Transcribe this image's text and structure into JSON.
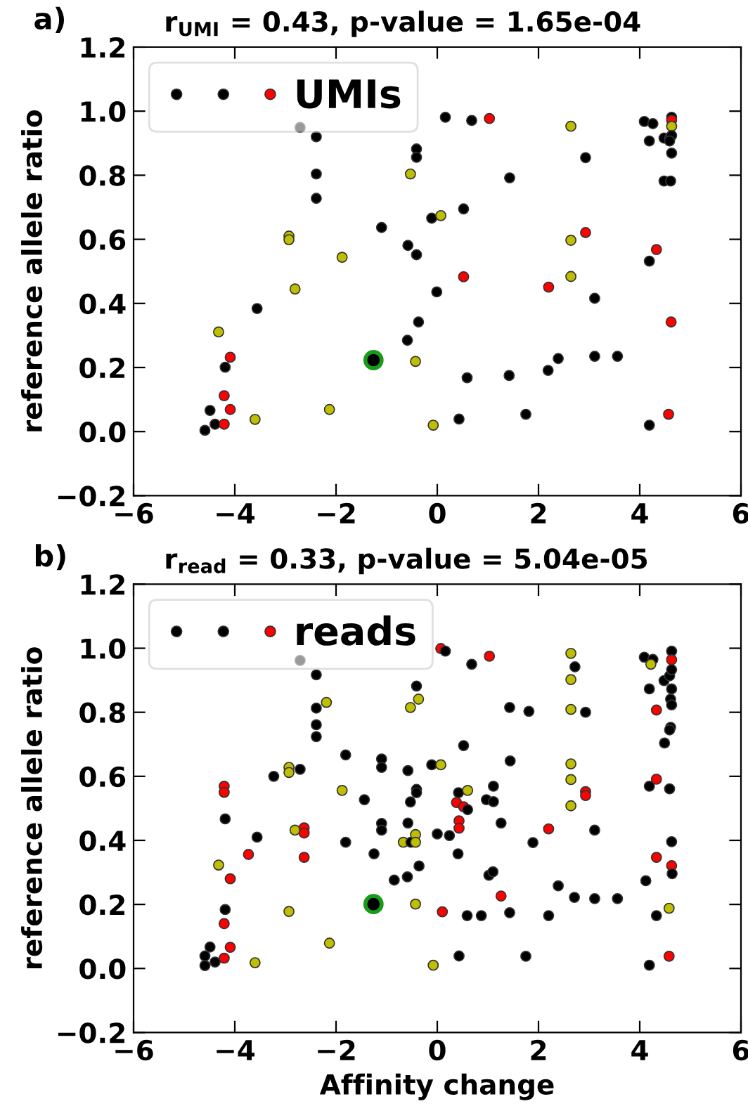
{
  "chart_data": [
    {
      "type": "scatter",
      "title": "r$_{UMI}$ = 0.43, p-value = 1.65e-04",
      "ylabel": "reference allele ratio",
      "annotations": [
        "a)"
      ],
      "xlim": [
        -6,
        6
      ],
      "xticks": [
        {
          "value": -6,
          "label": "−6"
        },
        {
          "value": -4,
          "label": "−4"
        },
        {
          "value": -2,
          "label": "−2"
        },
        0,
        2,
        4,
        6
      ],
      "ylim": [
        -0.2,
        1.2
      ],
      "yticks": [
        {
          "value": -0.2,
          "label": "−0.2"
        },
        {
          "value": 0,
          "label": "0.0"
        },
        {
          "value": 0.2,
          "label": "0.2"
        },
        {
          "value": 0.4,
          "label": "0.4"
        },
        {
          "value": 0.6,
          "label": "0.6"
        },
        {
          "value": 0.8,
          "label": "0.8"
        },
        {
          "value": 1.0,
          "label": "1.0"
        },
        {
          "value": 1.2,
          "label": "1.2"
        }
      ],
      "grid": false,
      "legend": "top left",
      "marker": "circle",
      "series": [
        {
          "name": "UMIs",
          "x": [
            -2.71,
            -2.39,
            1.03,
            -2.39,
            -2.39,
            -2.93,
            -2.93,
            -2.81,
            -1.88,
            -1.1,
            -0.58,
            -0.41,
            -0.53,
            -0.41,
            -0.41,
            -0.11,
            0.07,
            0.16,
            0.68,
            0.52,
            0.52,
            -0.01,
            1.43,
            2.64,
            2.93,
            2.64,
            2.93,
            2.64,
            2.2,
            3.11,
            4.09,
            4.26,
            4.19,
            4.48,
            4.59,
            4.63,
            4.63,
            4.63,
            4.63,
            4.59,
            4.63,
            4.48,
            4.61,
            4.33,
            4.19,
            -3.56,
            -4.32,
            -4.09,
            -4.19,
            -4.21,
            -4.49,
            -4.09,
            -4.39,
            -4.21,
            -4.59,
            -3.6,
            -2.13,
            -0.43,
            -0.59,
            -0.37,
            0.59,
            1.42,
            2.19,
            2.39,
            3.11,
            3.56,
            4.62,
            0.43,
            -0.08,
            1.75,
            4.19,
            4.57
          ],
          "values": [
            0.949,
            0.92,
            0.977,
            0.804,
            0.728,
            0.61,
            0.599,
            0.445,
            0.544,
            0.637,
            0.581,
            0.552,
            0.804,
            0.882,
            0.856,
            0.666,
            0.674,
            0.981,
            0.971,
            0.695,
            0.483,
            0.436,
            0.792,
            0.953,
            0.855,
            0.597,
            0.621,
            0.484,
            0.451,
            0.416,
            0.968,
            0.961,
            0.907,
            0.916,
            0.916,
            0.981,
            0.972,
            0.953,
            0.924,
            0.907,
            0.869,
            0.782,
            0.782,
            0.568,
            0.532,
            0.384,
            0.311,
            0.232,
            0.201,
            0.112,
            0.066,
            0.069,
            0.023,
            0.023,
            0.004,
            0.038,
            0.069,
            0.219,
            0.285,
            0.342,
            0.168,
            0.175,
            0.191,
            0.228,
            0.235,
            0.235,
            0.342,
            0.039,
            0.02,
            0.054,
            0.02,
            0.054
          ],
          "colors": [
            "#000000",
            "#000000",
            "#ff0000",
            "#000000",
            "#000000",
            "#bfbf00",
            "#bfbf00",
            "#bfbf00",
            "#bfbf00",
            "#000000",
            "#000000",
            "#000000",
            "#bfbf00",
            "#000000",
            "#000000",
            "#000000",
            "#bfbf00",
            "#000000",
            "#000000",
            "#000000",
            "#ff0000",
            "#000000",
            "#000000",
            "#bfbf00",
            "#000000",
            "#bfbf00",
            "#ff0000",
            "#bfbf00",
            "#ff0000",
            "#000000",
            "#000000",
            "#000000",
            "#000000",
            "#000000",
            "#000000",
            "#000000",
            "#ff0000",
            "#bfbf00",
            "#000000",
            "#000000",
            "#000000",
            "#000000",
            "#000000",
            "#ff0000",
            "#000000",
            "#000000",
            "#bfbf00",
            "#ff0000",
            "#000000",
            "#ff0000",
            "#000000",
            "#ff0000",
            "#000000",
            "#ff0000",
            "#000000",
            "#bfbf00",
            "#bfbf00",
            "#bfbf00",
            "#000000",
            "#000000",
            "#000000",
            "#000000",
            "#000000",
            "#000000",
            "#000000",
            "#000000",
            "#ff0000",
            "#000000",
            "#bfbf00",
            "#000000",
            "#000000",
            "#ff0000"
          ]
        },
        {
          "color": "#1a9a1a",
          "x": [
            -1.26
          ],
          "values": [
            0.223
          ]
        }
      ]
    },
    {
      "type": "scatter",
      "title": "r$_{read}$ = 0.33, p-value = 5.04e-05",
      "xlabel": "Affinity change",
      "ylabel": "reference allele ratio",
      "annotations": [
        "b)"
      ],
      "xlim": [
        -6,
        6
      ],
      "xticks": [
        {
          "value": -6,
          "label": "−6"
        },
        {
          "value": -4,
          "label": "−4"
        },
        {
          "value": -2,
          "label": "−2"
        },
        0,
        2,
        4,
        6
      ],
      "ylim": [
        -0.2,
        1.2
      ],
      "yticks": [
        {
          "value": -0.2,
          "label": "−0.2"
        },
        {
          "value": 0,
          "label": "0.0"
        },
        {
          "value": 0.2,
          "label": "0.2"
        },
        {
          "value": 0.4,
          "label": "0.4"
        },
        {
          "value": 0.6,
          "label": "0.6"
        },
        {
          "value": 0.8,
          "label": "0.8"
        },
        {
          "value": 1.0,
          "label": "1.0"
        },
        {
          "value": 1.2,
          "label": "1.2"
        }
      ],
      "grid": false,
      "legend": "top left",
      "marker": "circle",
      "series": [
        {
          "name": "reads",
          "x": [
            -2.71,
            -2.39,
            -4.21,
            -2.39,
            -2.19,
            -2.39,
            -2.39,
            -1.81,
            -1.1,
            -1.1,
            -3.23,
            -2.93,
            -2.93,
            -2.71,
            -1.88,
            -1.44,
            -4.21,
            -0.58,
            -0.53,
            -0.41,
            -0.41,
            -0.53,
            -0.37,
            -0.41,
            -0.11,
            0.07,
            0.07,
            0.16,
            0.68,
            1.03,
            0.52,
            0.42,
            0.38,
            0.52,
            0.6,
            0.6,
            0.97,
            1.11,
            1.11,
            1.43,
            1.81,
            1.44,
            2.64,
            2.72,
            2.64,
            2.64,
            2.93,
            2.64,
            2.64,
            2.64,
            2.93,
            2.93,
            4.09,
            4.26,
            4.22,
            4.19,
            4.33,
            4.33,
            4.19,
            4.48,
            4.59,
            4.63,
            4.63,
            4.63,
            4.63,
            4.61,
            4.63,
            4.61,
            4.59,
            4.49,
            4.59,
            -4.19,
            -3.56,
            -2.81,
            -2.63,
            -2.63,
            -3.73,
            -2.63,
            -4.32,
            -4.09,
            -4.19,
            -4.21,
            -4.09,
            -4.49,
            -4.59,
            -4.21,
            -4.39,
            -4.59,
            -3.6,
            -2.93,
            -2.13,
            -1.81,
            -1.25,
            -1.1,
            -1.1,
            -0.58,
            -0.67,
            -0.52,
            -0.43,
            -0.43,
            -0.36,
            -0.85,
            -0.59,
            -0.43,
            0.0,
            0.24,
            0.43,
            0.43,
            0.41,
            0.1,
            0.59,
            0.87,
            1.02,
            1.1,
            1.26,
            1.26,
            1.43,
            1.89,
            2.2,
            2.2,
            2.39,
            2.71,
            3.11,
            3.11,
            3.56,
            4.12,
            4.33,
            4.33,
            4.63,
            4.63,
            4.64,
            4.58,
            4.58,
            0.43,
            -0.08,
            1.75,
            4.19
          ],
          "values": [
            0.962,
            0.917,
            0.569,
            0.813,
            0.831,
            0.761,
            0.724,
            0.667,
            0.654,
            0.628,
            0.6,
            0.628,
            0.612,
            0.622,
            0.556,
            0.527,
            0.55,
            0.618,
            0.52,
            0.559,
            0.549,
            0.815,
            0.841,
            0.882,
            0.636,
            0.636,
            0.999,
            0.991,
            0.95,
            0.975,
            0.696,
            0.549,
            0.518,
            0.505,
            0.496,
            0.556,
            0.527,
            0.521,
            0.569,
            0.815,
            0.803,
            0.648,
            0.984,
            0.942,
            0.902,
            0.809,
            0.8,
            0.639,
            0.59,
            0.508,
            0.552,
            0.54,
            0.972,
            0.965,
            0.95,
            0.873,
            0.807,
            0.591,
            0.569,
            0.899,
            0.914,
            0.991,
            0.964,
            0.933,
            0.873,
            0.841,
            0.823,
            0.753,
            0.745,
            0.704,
            0.561,
            0.467,
            0.41,
            0.432,
            0.439,
            0.423,
            0.356,
            0.347,
            0.323,
            0.28,
            0.184,
            0.14,
            0.066,
            0.067,
            0.039,
            0.032,
            0.02,
            0.009,
            0.018,
            0.178,
            0.079,
            0.394,
            0.358,
            0.453,
            0.432,
            0.454,
            0.394,
            0.394,
            0.418,
            0.394,
            0.32,
            0.276,
            0.286,
            0.201,
            0.42,
            0.415,
            0.461,
            0.438,
            0.358,
            0.177,
            0.165,
            0.165,
            0.291,
            0.302,
            0.454,
            0.226,
            0.174,
            0.393,
            0.436,
            0.165,
            0.258,
            0.222,
            0.432,
            0.218,
            0.218,
            0.274,
            0.347,
            0.165,
            0.396,
            0.321,
            0.296,
            0.188,
            0.038,
            0.039,
            0.01,
            0.038,
            0.01
          ],
          "colors": [
            "#000000",
            "#000000",
            "#ff0000",
            "#000000",
            "#bfbf00",
            "#000000",
            "#000000",
            "#000000",
            "#000000",
            "#000000",
            "#000000",
            "#bfbf00",
            "#bfbf00",
            "#000000",
            "#bfbf00",
            "#000000",
            "#ff0000",
            "#000000",
            "#000000",
            "#000000",
            "#000000",
            "#bfbf00",
            "#bfbf00",
            "#000000",
            "#000000",
            "#bfbf00",
            "#ff0000",
            "#000000",
            "#000000",
            "#ff0000",
            "#000000",
            "#000000",
            "#ff0000",
            "#ff0000",
            "#000000",
            "#bfbf00",
            "#000000",
            "#000000",
            "#000000",
            "#000000",
            "#000000",
            "#000000",
            "#bfbf00",
            "#000000",
            "#bfbf00",
            "#bfbf00",
            "#000000",
            "#bfbf00",
            "#bfbf00",
            "#bfbf00",
            "#ff0000",
            "#ff0000",
            "#000000",
            "#000000",
            "#bfbf00",
            "#000000",
            "#ff0000",
            "#ff0000",
            "#000000",
            "#000000",
            "#000000",
            "#000000",
            "#ff0000",
            "#000000",
            "#000000",
            "#000000",
            "#000000",
            "#000000",
            "#000000",
            "#000000",
            "#000000",
            "#000000",
            "#000000",
            "#bfbf00",
            "#ff0000",
            "#ff0000",
            "#ff0000",
            "#ff0000",
            "#bfbf00",
            "#ff0000",
            "#000000",
            "#ff0000",
            "#ff0000",
            "#000000",
            "#000000",
            "#ff0000",
            "#000000",
            "#000000",
            "#bfbf00",
            "#bfbf00",
            "#bfbf00",
            "#000000",
            "#000000",
            "#000000",
            "#000000",
            "#000000",
            "#bfbf00",
            "#000000",
            "#bfbf00",
            "#bfbf00",
            "#000000",
            "#000000",
            "#000000",
            "#bfbf00",
            "#000000",
            "#000000",
            "#ff0000",
            "#ff0000",
            "#000000",
            "#ff0000",
            "#000000",
            "#000000",
            "#000000",
            "#000000",
            "#000000",
            "#ff0000",
            "#000000",
            "#000000",
            "#ff0000",
            "#000000",
            "#000000",
            "#000000",
            "#000000",
            "#000000",
            "#000000",
            "#000000",
            "#ff0000",
            "#000000",
            "#000000",
            "#ff0000",
            "#000000",
            "#bfbf00",
            "#ff0000",
            "#000000",
            "#bfbf00",
            "#000000",
            "#000000"
          ]
        },
        {
          "color": "#1a9a1a",
          "x": [
            -1.26
          ],
          "values": [
            0.201
          ]
        }
      ]
    }
  ]
}
